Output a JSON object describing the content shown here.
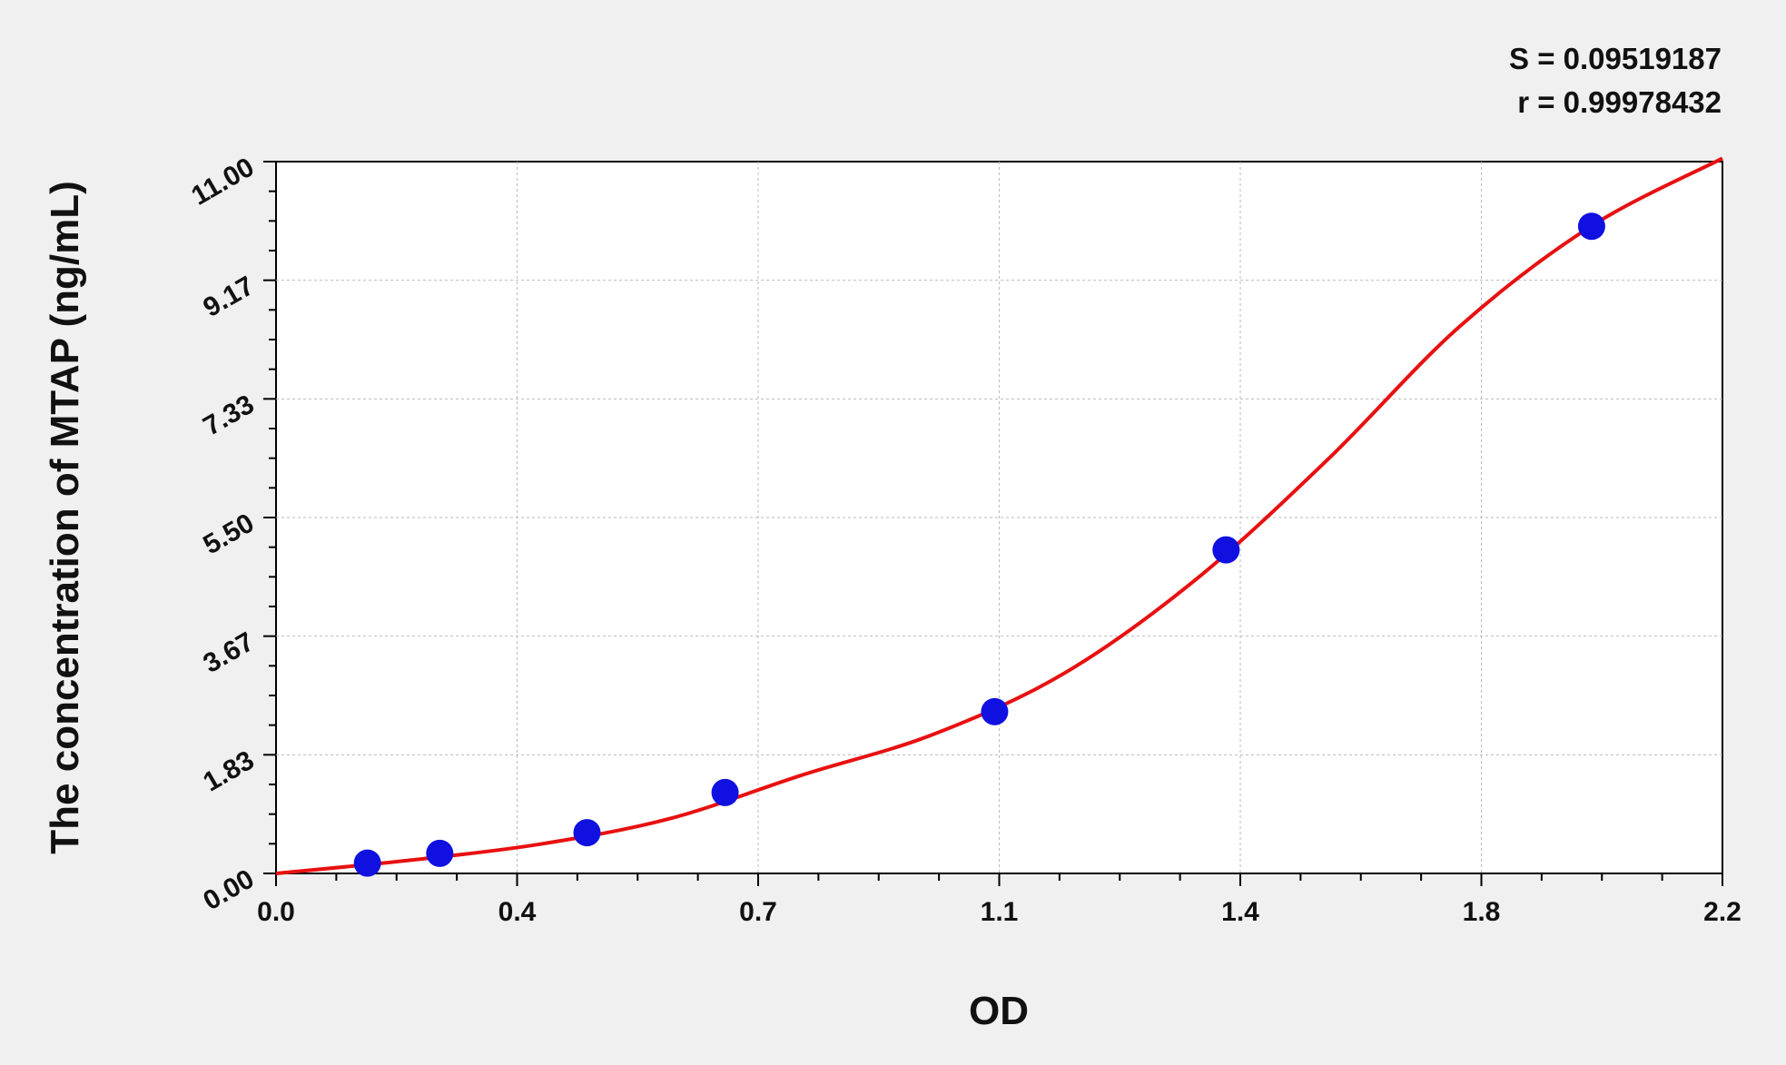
{
  "chart_data": {
    "type": "scatter",
    "title": "",
    "xlabel": "OD",
    "ylabel": "The concentration of MTAP (ng/mL)",
    "xlim": [
      0.0,
      2.2
    ],
    "ylim": [
      0.0,
      11.0
    ],
    "x_tick_labels": [
      "0.0",
      "0.4",
      "0.7",
      "1.1",
      "1.4",
      "1.8",
      "2.2"
    ],
    "y_tick_labels": [
      "0.00",
      "1.83",
      "3.67",
      "5.50",
      "7.33",
      "9.17",
      "11.00"
    ],
    "grid": true,
    "stats": [
      "S = 0.09519187",
      "r = 0.99978432"
    ],
    "points": {
      "color": "#1010e0",
      "x": [
        0.139,
        0.249,
        0.473,
        0.683,
        1.093,
        1.445,
        2.001
      ],
      "y": [
        0.16,
        0.31,
        0.63,
        1.25,
        2.5,
        5.0,
        10.0
      ]
    },
    "fit_curve": {
      "color": "#e81010",
      "x": [
        0.0,
        0.2,
        0.4,
        0.6,
        0.8,
        1.0,
        1.2,
        1.4,
        1.6,
        1.8,
        2.0,
        2.2
      ],
      "y": [
        0.0,
        0.2,
        0.45,
        0.85,
        1.52,
        2.15,
        3.1,
        4.55,
        6.4,
        8.45,
        10.0,
        11.05
      ]
    }
  }
}
